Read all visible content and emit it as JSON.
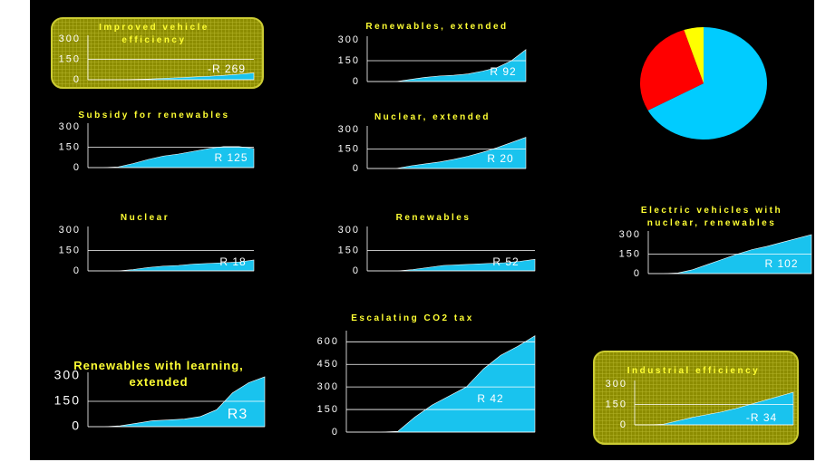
{
  "chart_data": [
    {
      "type": "area",
      "title": "Improved vehicle efficiency",
      "annotation": "-R 269",
      "highlight": true,
      "color": "#19c3ee",
      "values": [
        0,
        0,
        0,
        2,
        5,
        10,
        15,
        20,
        25,
        32,
        40,
        50
      ],
      "ylim": [
        0,
        300
      ],
      "yticks": [
        0,
        150,
        300
      ]
    },
    {
      "type": "area",
      "title": "Renewables, extended",
      "annotation": "R 92",
      "color": "#19c3ee",
      "values": [
        0,
        0,
        0,
        15,
        30,
        40,
        45,
        55,
        75,
        100,
        150,
        230
      ],
      "ylim": [
        0,
        300
      ],
      "yticks": [
        0,
        150,
        300
      ]
    },
    {
      "type": "area",
      "title": "Subsidy for renewables",
      "annotation": "R 125",
      "color": "#19c3ee",
      "values": [
        0,
        0,
        5,
        30,
        60,
        85,
        100,
        120,
        140,
        155,
        155,
        140
      ],
      "ylim": [
        0,
        300
      ],
      "yticks": [
        0,
        150,
        300
      ]
    },
    {
      "type": "area",
      "title": "Nuclear, extended",
      "annotation": "R 20",
      "color": "#19c3ee",
      "values": [
        0,
        0,
        0,
        20,
        35,
        50,
        70,
        95,
        125,
        160,
        200,
        240
      ],
      "ylim": [
        0,
        300
      ],
      "yticks": [
        0,
        150,
        300
      ]
    },
    {
      "type": "area",
      "title": "Nuclear",
      "annotation": "R 18",
      "color": "#19c3ee",
      "values": [
        0,
        0,
        0,
        10,
        25,
        35,
        40,
        50,
        55,
        60,
        65,
        80
      ],
      "ylim": [
        0,
        300
      ],
      "yticks": [
        0,
        150,
        300
      ]
    },
    {
      "type": "area",
      "title": "Renewables",
      "annotation": "R 52",
      "color": "#19c3ee",
      "values": [
        0,
        0,
        0,
        10,
        25,
        40,
        45,
        50,
        55,
        60,
        70,
        85
      ],
      "ylim": [
        0,
        300
      ],
      "yticks": [
        0,
        150,
        300
      ]
    },
    {
      "type": "area",
      "title": "Electric vehicles with nuclear, renewables",
      "annotation": "R 102",
      "color": "#19c3ee",
      "values": [
        0,
        0,
        5,
        30,
        70,
        110,
        150,
        185,
        210,
        240,
        270,
        300
      ],
      "ylim": [
        0,
        300
      ],
      "yticks": [
        0,
        150,
        300
      ]
    },
    {
      "type": "area",
      "title": "Escalating CO2 tax",
      "annotation": "R 42",
      "color": "#19c3ee",
      "values": [
        0,
        0,
        0,
        5,
        100,
        180,
        240,
        300,
        420,
        510,
        570,
        640
      ],
      "ylim": [
        0,
        650
      ],
      "yticks": [
        0,
        150,
        300,
        450,
        600
      ]
    },
    {
      "type": "area",
      "title": "Renewables with learning, extended",
      "annotation": "R3",
      "color": "#19c3ee",
      "values": [
        0,
        0,
        5,
        20,
        35,
        40,
        45,
        60,
        100,
        200,
        260,
        295
      ],
      "ylim": [
        0,
        300
      ],
      "yticks": [
        0,
        150,
        300
      ]
    },
    {
      "type": "area",
      "title": "Industrial efficiency",
      "annotation": "-R 34",
      "highlight": true,
      "color": "#19c3ee",
      "values": [
        0,
        0,
        5,
        30,
        55,
        75,
        95,
        120,
        150,
        180,
        210,
        240
      ],
      "ylim": [
        0,
        300
      ],
      "yticks": [
        0,
        150,
        300
      ]
    },
    {
      "type": "pie",
      "values": [
        67,
        28,
        5
      ],
      "colors": [
        "#00ccff",
        "#ff0000",
        "#ffff00"
      ]
    }
  ]
}
